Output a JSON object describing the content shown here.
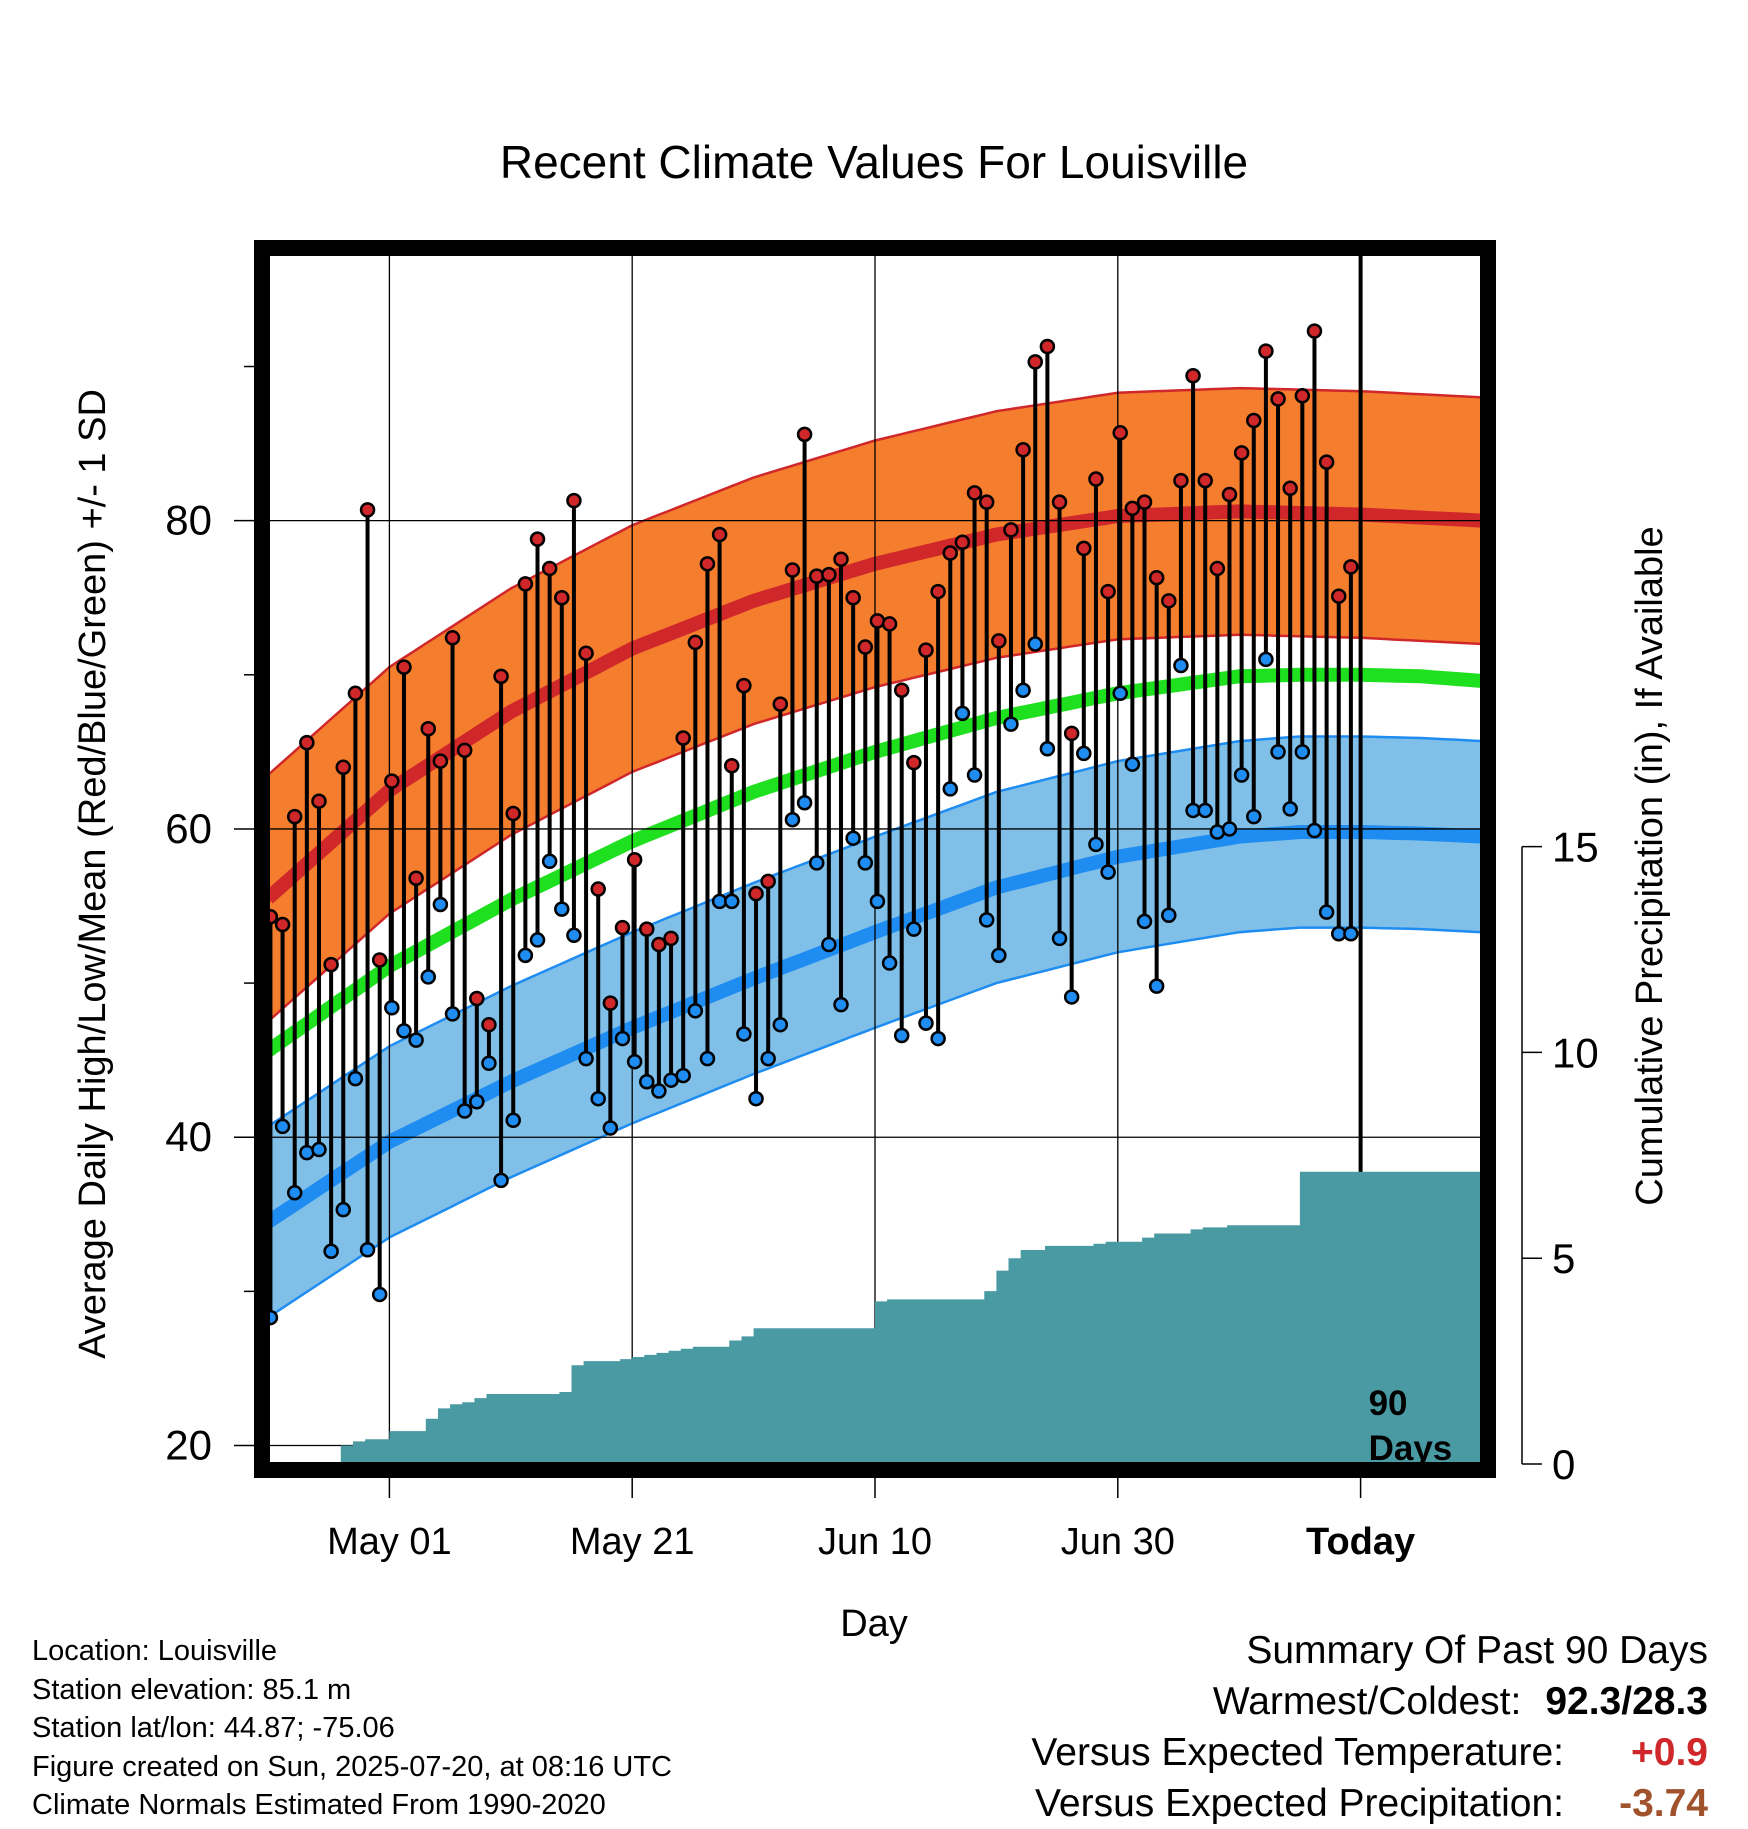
{
  "chart_data": {
    "type": "line",
    "title": "Recent Climate Values For Louisville",
    "xlabel": "Day",
    "ylabel": "Average Daily High/Low/Mean (Red/Blue/Green) +/- 1 SD",
    "y2label": "Cumulative Precipitation (in), If Available",
    "ylim": [
      18.8,
      97.3
    ],
    "y2lim": [
      0,
      29.4
    ],
    "yticks": [
      20,
      40,
      60,
      80
    ],
    "y2ticks": [
      0,
      5,
      10,
      15
    ],
    "xlim": [
      0,
      100
    ],
    "xtick_labels": [
      "May 01",
      "May 21",
      "Jun 10",
      "Jun 30",
      "Today"
    ],
    "xtick_days": [
      10,
      30,
      50,
      70,
      90
    ],
    "marker_label": "90\nDays",
    "days": [
      0,
      1,
      2,
      3,
      4,
      5,
      6,
      7,
      8,
      9,
      10,
      11,
      12,
      13,
      14,
      15,
      16,
      17,
      18,
      19,
      20,
      21,
      22,
      23,
      24,
      25,
      26,
      27,
      28,
      29,
      30,
      31,
      32,
      33,
      34,
      35,
      36,
      37,
      38,
      39,
      40,
      41,
      42,
      43,
      44,
      45,
      46,
      47,
      48,
      49,
      50,
      51,
      52,
      53,
      54,
      55,
      56,
      57,
      58,
      59,
      60,
      61,
      62,
      63,
      64,
      65,
      66,
      67,
      68,
      69,
      70,
      71,
      72,
      73,
      74,
      75,
      76,
      77,
      78,
      79,
      80,
      81,
      82,
      83,
      84,
      85,
      86,
      87,
      88,
      89
    ],
    "highs": [
      54.3,
      53.8,
      60.8,
      65.6,
      61.8,
      51.2,
      64.0,
      68.8,
      80.7,
      51.5,
      63.1,
      70.5,
      56.8,
      66.5,
      64.4,
      72.4,
      65.1,
      49.0,
      47.3,
      69.9,
      61.0,
      75.9,
      78.8,
      76.9,
      75.0,
      81.3,
      71.4,
      56.1,
      48.7,
      53.6,
      58.0,
      53.5,
      52.5,
      52.9,
      65.9,
      72.1,
      77.2,
      79.1,
      64.1,
      69.3,
      55.8,
      56.6,
      68.1,
      76.8,
      85.6,
      76.4,
      76.5,
      77.5,
      75.0,
      71.8,
      73.5,
      73.3,
      69.0,
      64.3,
      71.6,
      75.4,
      77.9,
      78.6,
      81.8,
      81.2,
      72.2,
      79.4,
      84.6,
      90.3,
      91.3,
      81.2,
      66.2,
      78.2,
      82.7,
      75.4,
      85.7,
      80.8,
      81.2,
      76.3,
      74.8,
      82.6,
      89.4,
      82.6,
      76.9,
      81.7,
      84.4,
      86.5,
      91.0,
      87.9,
      82.1,
      88.1,
      92.3,
      83.8,
      75.1,
      77.0
    ],
    "lows": [
      28.3,
      40.7,
      36.4,
      39.0,
      39.2,
      32.6,
      35.3,
      43.8,
      32.7,
      29.8,
      48.4,
      46.9,
      46.3,
      50.4,
      55.1,
      48.0,
      41.7,
      42.3,
      44.8,
      37.2,
      41.1,
      51.8,
      52.8,
      57.9,
      54.8,
      53.1,
      45.1,
      42.5,
      40.6,
      46.4,
      44.9,
      43.6,
      43.0,
      43.7,
      44.0,
      48.2,
      45.1,
      55.3,
      55.3,
      46.7,
      42.5,
      45.1,
      47.3,
      60.6,
      61.7,
      57.8,
      52.5,
      48.6,
      59.4,
      57.8,
      55.3,
      51.3,
      46.6,
      53.5,
      47.4,
      46.4,
      62.6,
      67.5,
      63.5,
      54.1,
      51.8,
      66.8,
      69.0,
      72.0,
      65.2,
      52.9,
      49.1,
      64.9,
      59.0,
      57.2,
      68.8,
      64.2,
      54.0,
      49.8,
      54.4,
      70.6,
      61.2,
      61.2,
      59.8,
      60.0,
      63.5,
      60.8,
      71.0,
      65.0,
      61.3,
      65.0,
      59.9,
      54.6,
      53.2,
      53.2
    ],
    "normal_days": [
      0,
      100
    ],
    "normal_high": {
      "d": [
        0,
        10,
        20,
        30,
        40,
        50,
        60,
        70,
        80,
        85,
        90,
        95,
        100
      ],
      "mean": [
        55.5,
        62.5,
        67.6,
        71.7,
        74.8,
        77.2,
        79.1,
        80.3,
        80.6,
        80.5,
        80.4,
        80.2,
        80.0
      ],
      "sd": 8.0
    },
    "normal_mean": {
      "d": [
        0,
        10,
        20,
        30,
        40,
        50,
        60,
        70,
        80,
        85,
        90,
        95,
        100
      ],
      "mean": [
        45.6,
        51.1,
        55.4,
        59.2,
        62.4,
        65.0,
        67.2,
        68.8,
        69.9,
        70.0,
        70.0,
        69.9,
        69.6
      ]
    },
    "normal_low": {
      "d": [
        0,
        10,
        20,
        30,
        40,
        50,
        60,
        70,
        80,
        85,
        90,
        95,
        100
      ],
      "mean": [
        34.5,
        39.7,
        43.6,
        47.1,
        50.3,
        53.3,
        56.2,
        58.2,
        59.5,
        59.8,
        59.8,
        59.7,
        59.5
      ],
      "sd": 6.2
    },
    "precip": {
      "d": [
        0,
        5,
        6,
        7,
        8,
        9,
        10,
        11,
        12,
        13,
        14,
        15,
        16,
        17,
        18,
        19,
        20,
        21,
        22,
        23,
        24,
        25,
        26,
        27,
        28,
        29,
        30,
        31,
        32,
        33,
        34,
        35,
        36,
        37,
        38,
        39,
        40,
        41,
        42,
        43,
        44,
        45,
        46,
        47,
        48,
        49,
        50,
        51,
        52,
        53,
        54,
        55,
        56,
        57,
        58,
        59,
        60,
        61,
        62,
        63,
        64,
        65,
        66,
        67,
        68,
        69,
        70,
        71,
        72,
        73,
        74,
        75,
        76,
        77,
        78,
        79,
        80,
        81,
        82,
        83,
        84,
        85,
        86,
        87,
        88,
        89,
        90,
        91,
        92,
        93,
        94,
        95,
        96,
        97,
        98,
        99
      ],
      "v": [
        0,
        0,
        0.45,
        0.55,
        0.6,
        0.6,
        0.8,
        0.8,
        0.8,
        1.1,
        1.35,
        1.45,
        1.5,
        1.6,
        1.7,
        1.7,
        1.7,
        1.7,
        1.7,
        1.7,
        1.75,
        2.4,
        2.5,
        2.5,
        2.5,
        2.55,
        2.6,
        2.65,
        2.7,
        2.75,
        2.8,
        2.85,
        2.85,
        2.85,
        3.0,
        3.1,
        3.3,
        3.3,
        3.3,
        3.3,
        3.3,
        3.3,
        3.3,
        3.3,
        3.3,
        3.3,
        3.95,
        4.0,
        4.0,
        4.0,
        4.0,
        4.0,
        4.0,
        4.0,
        4.0,
        4.2,
        4.7,
        5.0,
        5.2,
        5.2,
        5.3,
        5.3,
        5.3,
        5.3,
        5.35,
        5.4,
        5.4,
        5.4,
        5.5,
        5.6,
        5.6,
        5.6,
        5.7,
        5.75,
        5.75,
        5.8,
        5.8,
        5.8,
        5.8,
        5.8,
        5.8,
        7.1,
        7.1,
        7.1,
        7.1,
        7.1,
        7.1,
        7.1,
        7.1,
        7.1,
        7.1,
        7.1,
        7.1,
        7.1,
        7.1,
        7.1
      ]
    }
  },
  "info": {
    "location": "Location: Louisville",
    "elevation": "Station elevation: 85.1 m",
    "latlon": "Station lat/lon: 44.87; -75.06",
    "created": "Figure created on Sun, 2025-07-20, at 08:16 UTC",
    "normals": "Climate Normals Estimated From 1990-2020"
  },
  "summary": {
    "title": "Summary Of Past 90 Days",
    "warm_cold_label": "Warmest/Coldest:",
    "warm_cold_value": "92.3/28.3",
    "temp_label": "Versus Expected Temperature:",
    "temp_value": "+0.9",
    "temp_color": "#d0282a",
    "precip_label": "Versus Expected Precipitation:",
    "precip_value": "-3.74",
    "precip_color": "#a0522d"
  },
  "colors": {
    "high_band": "#f47d2e",
    "high_line": "#d0272a",
    "mean_line": "#1fe01f",
    "low_band": "#80c0e8",
    "low_line": "#1e8cf0",
    "precip_fill": "#4a9aa3",
    "high_dot": "#d0272a",
    "low_dot": "#1e8cf0"
  }
}
